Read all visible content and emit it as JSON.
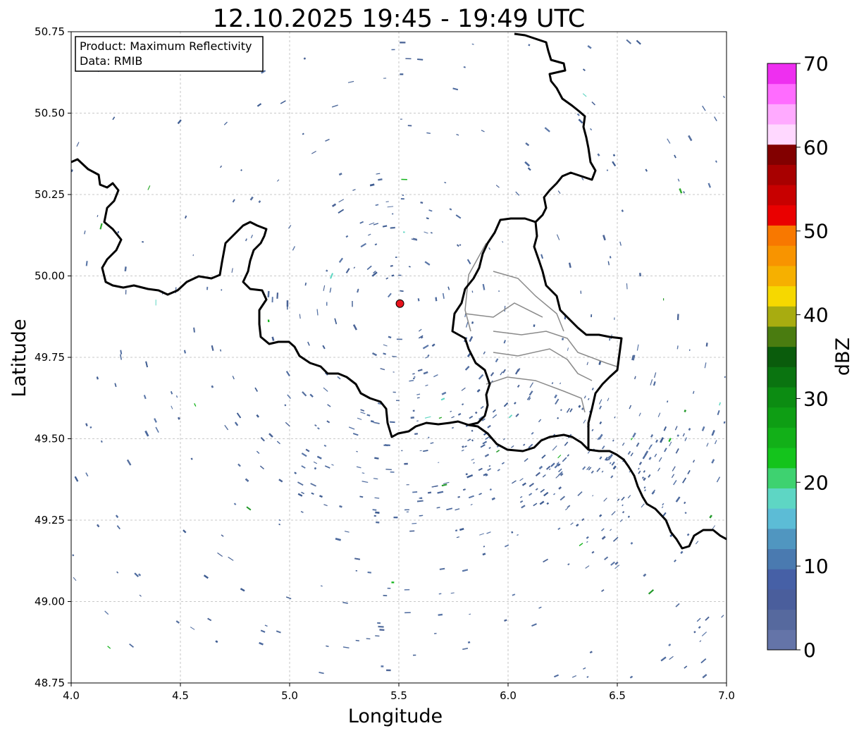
{
  "title": "12.10.2025 19:45 - 19:49 UTC",
  "xlabel": "Longitude",
  "ylabel": "Latitude",
  "info_box": {
    "product": "Product: Maximum Reflectivity",
    "data": "Data: RMIB"
  },
  "map": {
    "type": "radar-map",
    "xlim": [
      4.0,
      7.0
    ],
    "ylim": [
      48.75,
      50.75
    ],
    "x_ticks": [
      "4.0",
      "4.5",
      "5.0",
      "5.5",
      "6.0",
      "6.5",
      "7.0"
    ],
    "y_ticks": [
      "48.75",
      "49.00",
      "49.25",
      "49.50",
      "49.75",
      "50.00",
      "50.25",
      "50.50",
      "50.75"
    ],
    "grid": true,
    "radar_site": {
      "lon": 5.505,
      "lat": 49.915,
      "color": "#e8141c"
    },
    "borders_color": "#000000",
    "subregion_color": "#888888"
  },
  "colorbar": {
    "label": "dBZ",
    "min": 0,
    "max": 70,
    "ticks": [
      "0",
      "10",
      "20",
      "30",
      "40",
      "50",
      "60",
      "70"
    ],
    "colors": [
      "#6474a8",
      "#56699e",
      "#4a5e9c",
      "#4660a6",
      "#4a7ab0",
      "#5096c0",
      "#5cbcd6",
      "#5ed6c4",
      "#3ed270",
      "#14c41c",
      "#12b018",
      "#0e9e14",
      "#0c8c12",
      "#0a7410",
      "#0a5c0c",
      "#4a7c10",
      "#a8ac10",
      "#f6d800",
      "#f6b000",
      "#f89400",
      "#f87800",
      "#ea0000",
      "#c80000",
      "#a80000",
      "#820000",
      "#ffd8ff",
      "#ffaaff",
      "#ff6cff",
      "#ee2ff0"
    ]
  }
}
